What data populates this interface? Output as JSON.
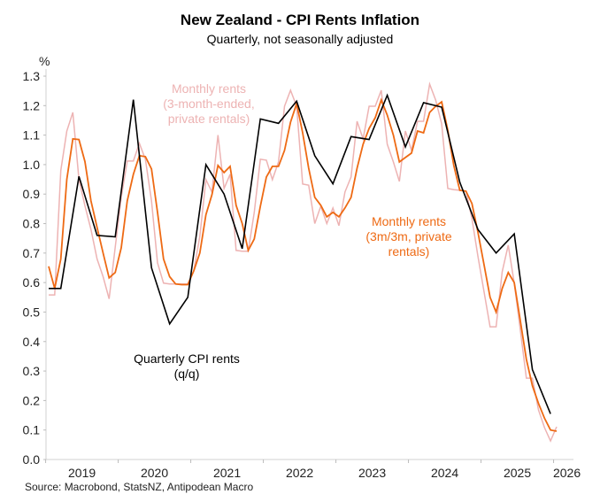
{
  "chart_data": {
    "type": "line",
    "title": "New Zealand - CPI Rents Inflation",
    "subtitle": "Quarterly, not seasonally adjusted",
    "ylabel": "%",
    "ylim": [
      0,
      1.3
    ],
    "yticks": [
      "0.0",
      "0.1",
      "0.2",
      "0.3",
      "0.4",
      "0.5",
      "0.6",
      "0.7",
      "0.8",
      "0.9",
      "1.0",
      "1.1",
      "1.2",
      "1.3"
    ],
    "xticks": [
      "2019",
      "2020",
      "2021",
      "2022",
      "2023",
      "2024",
      "2025",
      "2026"
    ],
    "grid": false,
    "source": "Source: Macrobond, StatsNZ, Antipodean Macro",
    "colors": {
      "quarterly": "#000000",
      "monthly_3m3m": "#EE6A14",
      "monthly_3me": "#EDB3B3"
    },
    "series": [
      {
        "name": "Quarterly CPI rents (q/q)",
        "label_lines": [
          "Quarterly CPI rents",
          "(q/q)"
        ],
        "frequency": "quarterly",
        "dates": [
          "2019-03",
          "2019-06",
          "2019-09",
          "2019-12",
          "2020-03",
          "2020-06",
          "2020-09",
          "2020-12",
          "2021-03",
          "2021-06",
          "2021-09",
          "2021-12",
          "2022-03",
          "2022-06",
          "2022-09",
          "2022-12",
          "2023-03",
          "2023-06",
          "2023-09",
          "2023-12",
          "2024-03",
          "2024-06",
          "2024-09",
          "2024-12",
          "2025-03",
          "2025-06",
          "2025-09",
          "2025-12"
        ],
        "values": [
          0.58,
          0.96,
          0.76,
          0.755,
          1.22,
          0.65,
          0.46,
          0.55,
          1.0,
          0.9,
          0.715,
          1.155,
          1.14,
          1.215,
          1.03,
          0.935,
          1.095,
          1.085,
          1.235,
          1.06,
          1.21,
          1.195,
          0.94,
          0.78,
          0.7,
          0.765,
          0.305,
          0.155
        ]
      },
      {
        "name": "Monthly rents (3m/3m, private rentals)",
        "label_lines": [
          "Monthly rents",
          "(3m/3m, private",
          "rentals)"
        ],
        "frequency": "monthly",
        "start": "2019-01",
        "values": [
          0.655,
          0.58,
          0.68,
          0.95,
          1.087,
          1.085,
          1.01,
          0.877,
          0.787,
          0.7,
          0.616,
          0.634,
          0.718,
          0.877,
          0.967,
          1.03,
          1.027,
          0.985,
          0.838,
          0.68,
          0.62,
          0.595,
          0.593,
          0.593,
          0.64,
          0.7,
          0.83,
          0.898,
          0.997,
          0.973,
          0.994,
          0.862,
          0.8,
          0.709,
          0.748,
          0.859,
          0.958,
          0.994,
          0.994,
          1.048,
          1.144,
          1.207,
          1.108,
          0.988,
          0.889,
          0.862,
          0.823,
          0.838,
          0.823,
          0.853,
          0.889,
          0.988,
          1.069,
          1.123,
          1.159,
          1.219,
          1.168,
          1.1,
          1.009,
          1.024,
          1.039,
          1.114,
          1.108,
          1.177,
          1.198,
          1.213,
          1.117,
          0.997,
          0.913,
          0.91,
          0.868,
          0.77,
          0.66,
          0.55,
          0.5,
          0.58,
          0.634,
          0.6,
          0.47,
          0.34,
          0.25,
          0.19,
          0.14,
          0.1,
          0.096
        ]
      },
      {
        "name": "Monthly rents (3-month-ended, private rentals)",
        "label_lines": [
          "Monthly rents",
          "(3-month-ended,",
          "private rentals)"
        ],
        "frequency": "monthly",
        "start": "2019-01",
        "values": [
          0.558,
          0.558,
          0.98,
          1.114,
          1.177,
          0.95,
          0.86,
          0.78,
          0.68,
          0.62,
          0.545,
          0.72,
          0.889,
          1.012,
          1.012,
          1.072,
          1.018,
          0.877,
          0.667,
          0.598,
          0.595,
          0.595,
          0.595,
          0.595,
          0.64,
          0.757,
          0.949,
          0.907,
          1.1,
          0.919,
          0.967,
          0.709,
          0.706,
          0.706,
          0.838,
          1.018,
          1.015,
          0.949,
          1.009,
          1.198,
          1.252,
          1.198,
          0.934,
          0.93,
          0.8,
          0.859,
          0.8,
          0.853,
          0.793,
          0.907,
          0.958,
          1.147,
          1.087,
          1.198,
          1.198,
          1.252,
          1.069,
          1.009,
          0.943,
          1.114,
          1.048,
          1.147,
          1.147,
          1.273,
          1.219,
          1.138,
          0.919,
          0.915,
          0.913,
          0.91,
          0.817,
          0.688,
          0.568,
          0.45,
          0.45,
          0.637,
          0.727,
          0.598,
          0.438,
          0.276,
          0.276,
          0.168,
          0.108,
          0.063,
          0.111
        ]
      }
    ]
  }
}
